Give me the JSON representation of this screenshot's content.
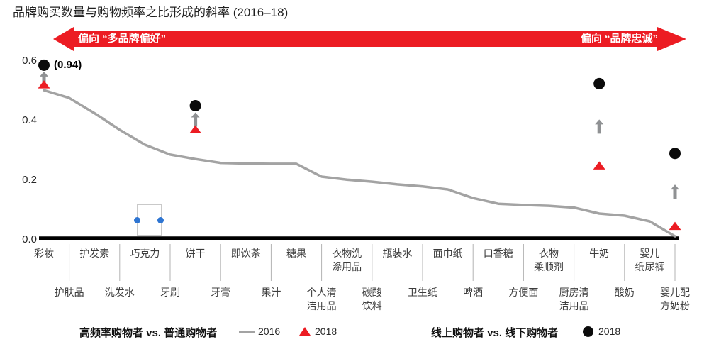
{
  "title": "品牌购买数量与购物频率之比形成的斜率 (2016–18)",
  "banner": {
    "left_label": "偏向 “多品牌偏好”",
    "right_label": "偏向 “品牌忠诚”"
  },
  "legend": {
    "left_title": "高频率购物者 vs. 普通购物者",
    "line_label": "2016",
    "triangle_label": "2018",
    "right_title": "线上购物者 vs. 线下购物者",
    "circle_label": "2018"
  },
  "colors": {
    "red": "#ec1c23",
    "line_gray": "#a3a3a3",
    "arrow_gray": "#8f9193",
    "blue_handle": "#2e75d2",
    "axis_black": "#000000"
  },
  "chart_data": {
    "type": "line",
    "title": "品牌购买数量与购物频率之比形成的斜率 (2016–18)",
    "xlabel": "",
    "ylabel": "",
    "ylim": [
      0,
      0.6
    ],
    "y_ticks": [
      0,
      0.2,
      0.4,
      0.6
    ],
    "grid": false,
    "legend_position": "bottom",
    "categories": [
      "彩妆",
      "护肤品",
      "护发素",
      "洗发水",
      "巧克力",
      "牙刷",
      "饼干",
      "牙膏",
      "即饮茶",
      "果汁",
      "糖果",
      "个人清洁用品",
      "衣物洗涤用品",
      "碳酸饮料",
      "瓶装水",
      "卫生纸",
      "面巾纸",
      "啤酒",
      "口香糖",
      "方便面",
      "衣物柔顺剂",
      "厨房清洁用品",
      "牛奶",
      "酸奶",
      "婴儿纸尿裤",
      "婴儿配方奶粉"
    ],
    "series": [
      {
        "name": "高频率购物者 vs. 普通购物者 — 2016",
        "marker": "gray-line",
        "values": [
          0.502,
          0.476,
          0.425,
          0.369,
          0.319,
          0.286,
          0.271,
          0.258,
          0.256,
          0.255,
          0.255,
          0.212,
          0.202,
          0.195,
          0.186,
          0.179,
          0.169,
          0.14,
          0.121,
          0.117,
          0.114,
          0.108,
          0.088,
          0.081,
          0.062,
          0.012
        ]
      },
      {
        "name": "高频率购物者 vs. 普通购物者 — 2018",
        "marker": "red-triangle",
        "points": [
          {
            "category": "彩妆",
            "value": 0.52
          },
          {
            "category": "饼干",
            "value": 0.369
          },
          {
            "category": "牛奶",
            "value": 0.248
          },
          {
            "category": "婴儿配方奶粉",
            "value": 0.045
          }
        ]
      },
      {
        "name": "线上购物者 vs. 线下购物者 — 2018",
        "marker": "black-circle",
        "points": [
          {
            "category": "彩妆",
            "value": 0.94,
            "plotted": 0.586,
            "annotation": "(0.94)"
          },
          {
            "category": "饼干",
            "value": 0.45,
            "plotted": 0.45
          },
          {
            "category": "牛奶",
            "value": 0.524,
            "plotted": 0.524
          },
          {
            "category": "婴儿配方奶粉",
            "value": 0.29,
            "plotted": 0.29
          }
        ]
      }
    ],
    "highlights": [
      {
        "index": 0,
        "triangle": 0.52,
        "circle": 0.586,
        "label": "(0.94)"
      },
      {
        "index": 6,
        "triangle": 0.369,
        "circle": 0.45,
        "label": ""
      },
      {
        "index": 22,
        "triangle": 0.248,
        "circle": 0.524,
        "label": ""
      },
      {
        "index": 25,
        "triangle": 0.045,
        "circle": 0.29,
        "label": ""
      }
    ]
  }
}
